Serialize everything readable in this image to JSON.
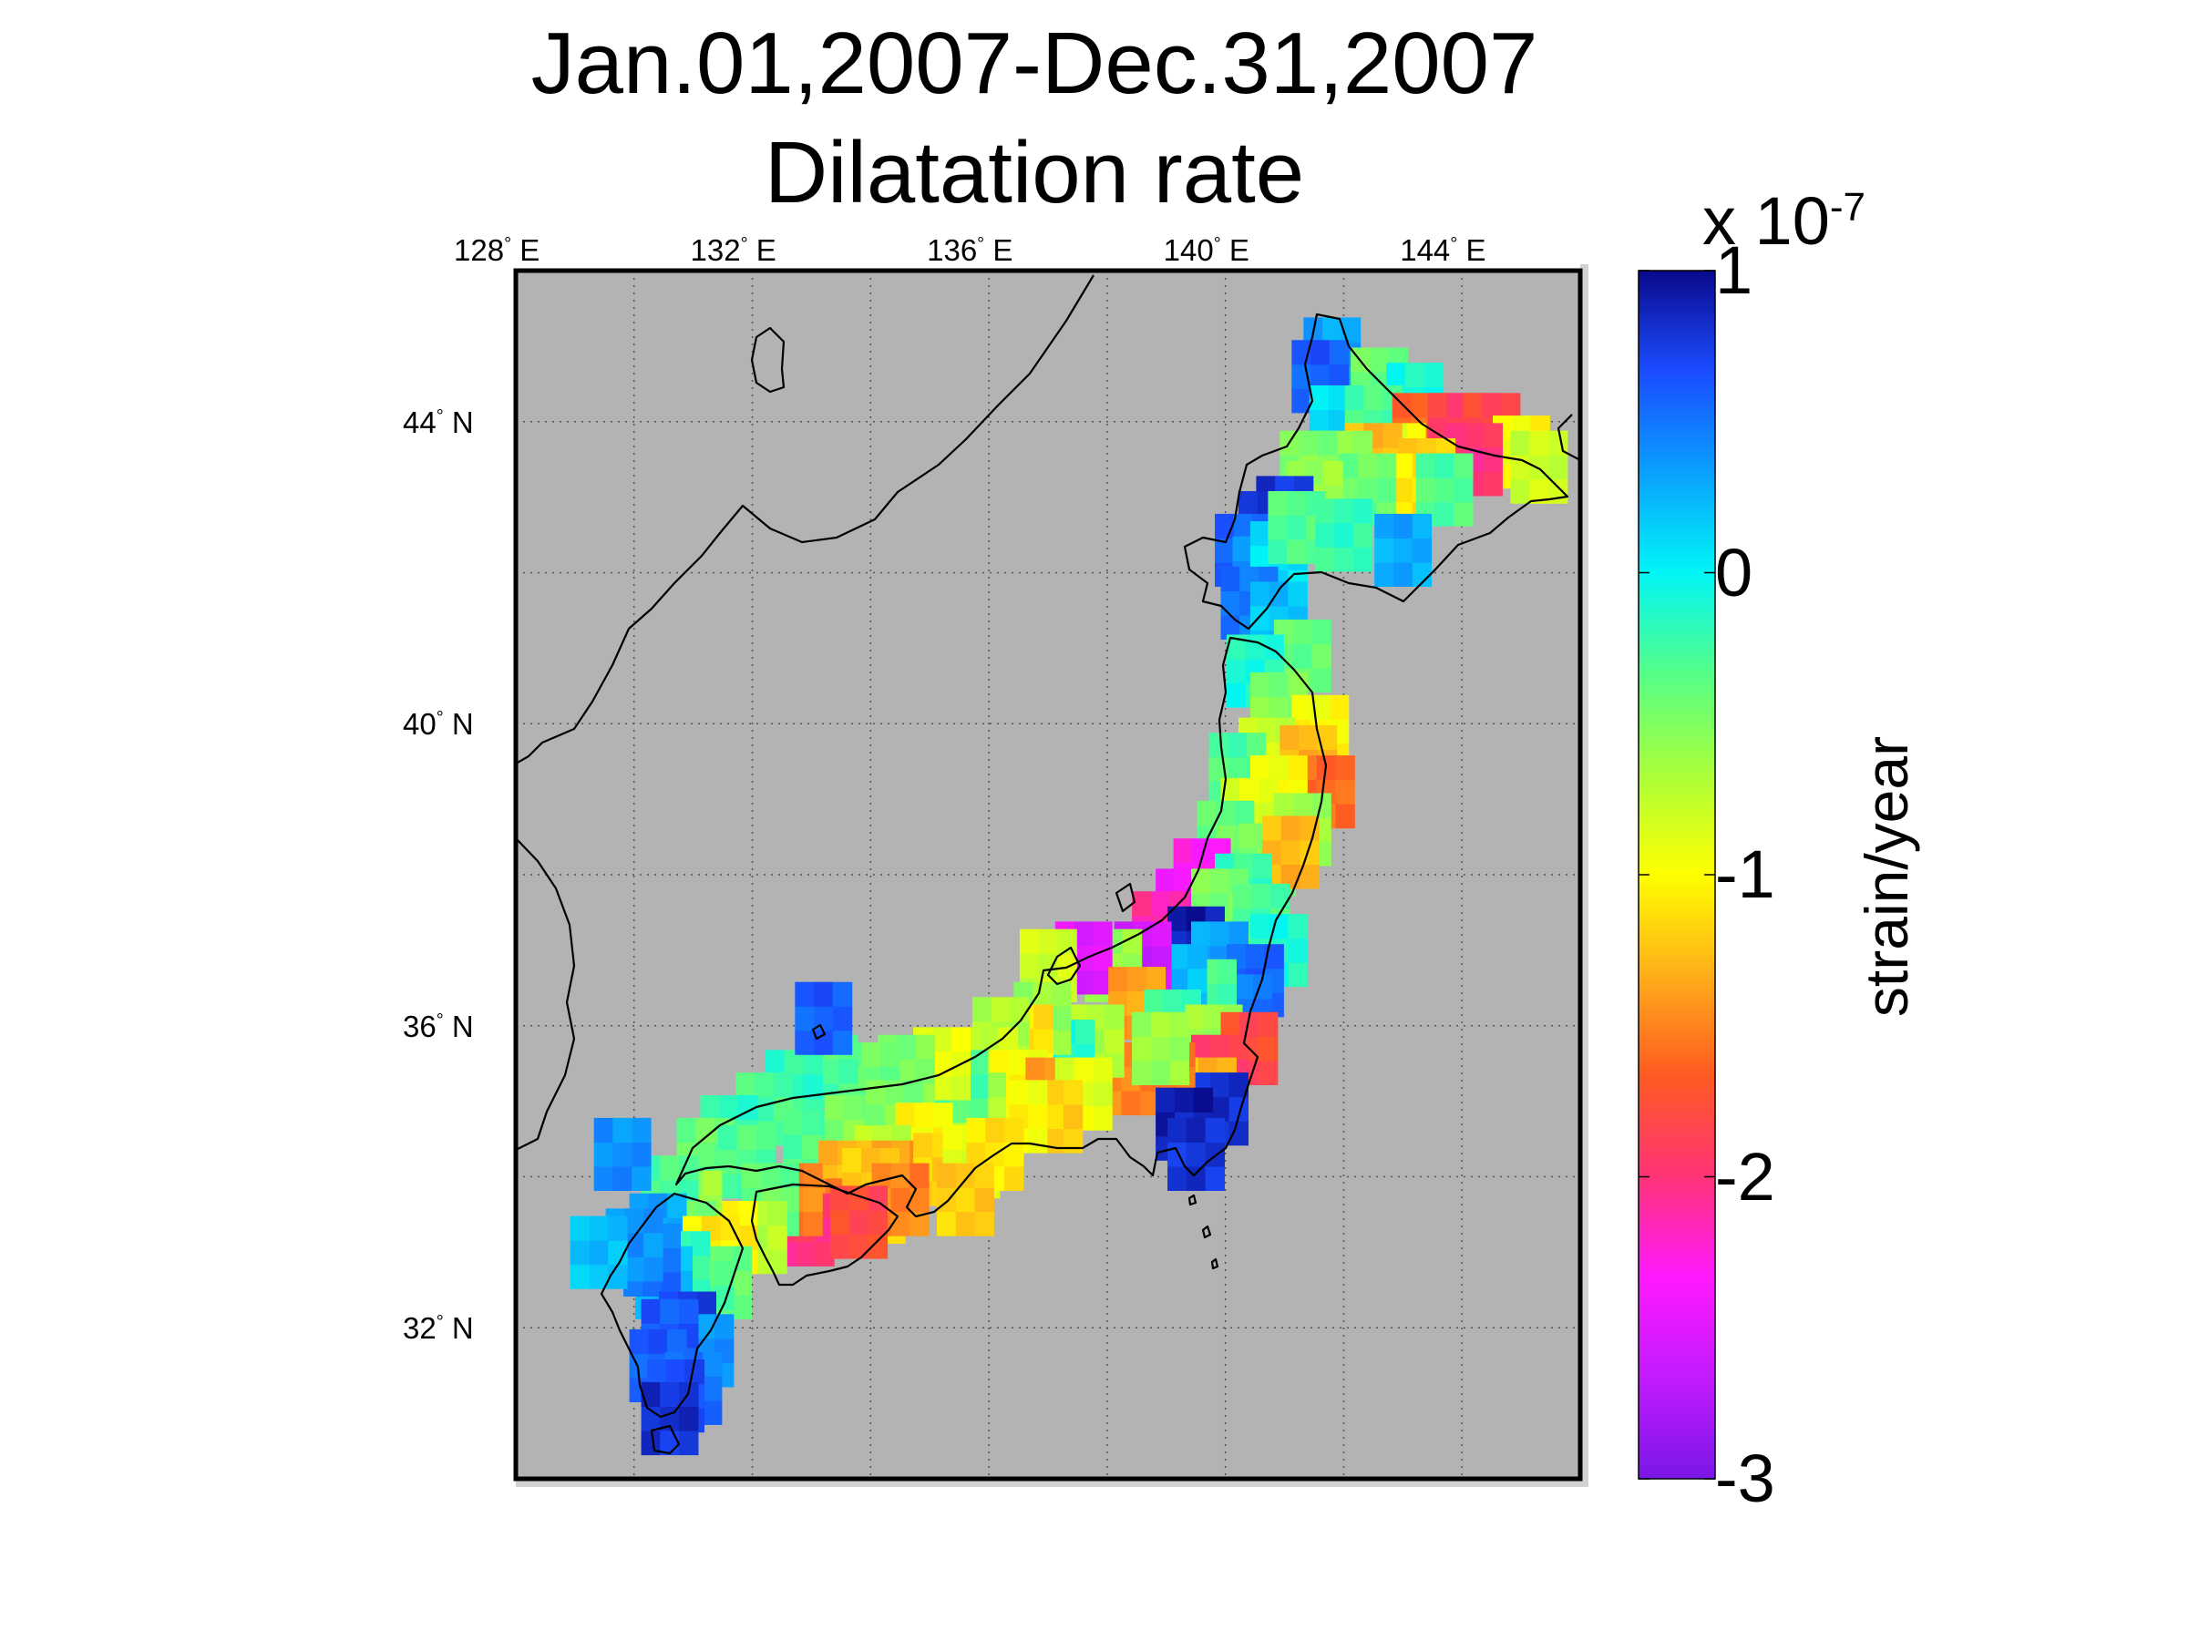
{
  "title": {
    "line1": "Jan.01,2007-Dec.31,2007",
    "line2": "Dilatation rate"
  },
  "map": {
    "extent": {
      "lon_min": 128,
      "lon_max": 146,
      "lat_min": 30,
      "lat_max": 46
    },
    "background_color": "#b3b3b3",
    "lon_ticks": [
      {
        "value": 128,
        "text": "128",
        "deg": "°",
        "hemi": "E"
      },
      {
        "value": 132,
        "text": "132",
        "deg": "°",
        "hemi": "E"
      },
      {
        "value": 136,
        "text": "136",
        "deg": "°",
        "hemi": "E"
      },
      {
        "value": 140,
        "text": "140",
        "deg": "°",
        "hemi": "E"
      },
      {
        "value": 144,
        "text": "144",
        "deg": "°",
        "hemi": "E"
      }
    ],
    "lat_ticks": [
      {
        "value": 44,
        "text": "44",
        "deg": "°",
        "hemi": "N"
      },
      {
        "value": 40,
        "text": "40",
        "deg": "°",
        "hemi": "N"
      },
      {
        "value": 36,
        "text": "36",
        "deg": "°",
        "hemi": "N"
      },
      {
        "value": 32,
        "text": "32",
        "deg": "°",
        "hemi": "N"
      }
    ],
    "gridlines": "dotted"
  },
  "colorbar": {
    "min": -3,
    "max": 1,
    "exponent_prefix": "x 10",
    "exponent": "-7",
    "label": "strain/year",
    "ticks": [
      {
        "value": 1,
        "text": "1"
      },
      {
        "value": 0,
        "text": "0"
      },
      {
        "value": -1,
        "text": "-1"
      },
      {
        "value": -2,
        "text": "-2"
      },
      {
        "value": -3,
        "text": "-3"
      }
    ],
    "colors": [
      "#7a17e6",
      "#c21aff",
      "#ff1aff",
      "#ff3377",
      "#ff5a22",
      "#ffae1a",
      "#ffff00",
      "#aaff3a",
      "#55ff88",
      "#00f5f5",
      "#0aa0ff",
      "#1a4cff",
      "#0a0a8c"
    ]
  },
  "chart_data": {
    "type": "heatmap",
    "title": "Jan.01,2007-Dec.31,2007 Dilatation rate",
    "value_label": "strain/year",
    "value_scale": "x 10^-7",
    "value_range": [
      -3,
      1
    ],
    "xlabel": "",
    "ylabel": "",
    "x_range_lon": [
      128,
      146
    ],
    "y_range_lat": [
      30,
      46
    ],
    "points": [
      [
        141.8,
        44.9,
        0.3
      ],
      [
        141.6,
        44.6,
        0.6
      ],
      [
        142.6,
        44.5,
        -0.4
      ],
      [
        143.2,
        44.3,
        -0.1
      ],
      [
        141.9,
        44.0,
        0.1
      ],
      [
        142.5,
        44.0,
        -0.3
      ],
      [
        143.3,
        43.9,
        -1.6
      ],
      [
        143.9,
        43.9,
        -1.9
      ],
      [
        144.5,
        43.9,
        -1.8
      ],
      [
        145.0,
        43.6,
        -1.0
      ],
      [
        144.2,
        43.5,
        -2.0
      ],
      [
        145.3,
        43.4,
        -0.8
      ],
      [
        142.9,
        43.5,
        -0.9
      ],
      [
        142.5,
        43.5,
        -1.3
      ],
      [
        143.4,
        43.3,
        -1.2
      ],
      [
        142.0,
        43.4,
        -0.6
      ],
      [
        143.0,
        43.1,
        -1.1
      ],
      [
        142.4,
        43.1,
        -0.4
      ],
      [
        143.7,
        43.1,
        -0.3
      ],
      [
        141.4,
        43.4,
        -0.5
      ],
      [
        141.5,
        43.0,
        -0.6
      ],
      [
        141.0,
        42.8,
        0.8
      ],
      [
        140.7,
        42.6,
        0.8
      ],
      [
        140.3,
        42.3,
        0.6
      ],
      [
        140.6,
        42.0,
        0.4
      ],
      [
        140.9,
        42.2,
        0.1
      ],
      [
        141.2,
        42.6,
        -0.3
      ],
      [
        142.0,
        42.5,
        -0.2
      ],
      [
        143.0,
        42.3,
        0.3
      ],
      [
        140.4,
        41.6,
        0.5
      ],
      [
        140.9,
        41.4,
        0.2
      ],
      [
        141.3,
        40.9,
        -0.4
      ],
      [
        140.5,
        40.7,
        -0.1
      ],
      [
        140.9,
        40.2,
        -0.5
      ],
      [
        141.6,
        39.9,
        -1.0
      ],
      [
        140.7,
        39.6,
        -0.8
      ],
      [
        141.4,
        39.5,
        -1.3
      ],
      [
        140.2,
        39.4,
        -0.3
      ],
      [
        141.7,
        39.1,
        -1.6
      ],
      [
        140.9,
        39.1,
        -1.0
      ],
      [
        140.4,
        38.8,
        -0.9
      ],
      [
        141.3,
        38.6,
        -0.6
      ],
      [
        140.0,
        38.5,
        -0.4
      ],
      [
        140.7,
        38.2,
        -0.5
      ],
      [
        141.1,
        38.3,
        -1.3
      ],
      [
        139.6,
        38.0,
        -2.3
      ],
      [
        140.3,
        37.8,
        -0.2
      ],
      [
        139.3,
        37.6,
        -2.4
      ],
      [
        139.9,
        37.6,
        -0.5
      ],
      [
        140.6,
        37.4,
        -0.3
      ],
      [
        140.9,
        37.0,
        -0.1
      ],
      [
        138.9,
        37.3,
        -2.1
      ],
      [
        139.5,
        37.1,
        0.9
      ],
      [
        139.9,
        36.9,
        0.3
      ],
      [
        140.5,
        36.6,
        0.6
      ],
      [
        140.3,
        36.2,
        0.5
      ],
      [
        139.7,
        36.4,
        -0.3
      ],
      [
        139.2,
        36.6,
        0.2
      ],
      [
        138.6,
        36.9,
        -2.6
      ],
      [
        138.1,
        36.8,
        -0.6
      ],
      [
        137.6,
        36.9,
        -2.5
      ],
      [
        137.0,
        36.8,
        -0.8
      ],
      [
        138.5,
        36.3,
        -1.4
      ],
      [
        139.1,
        36.0,
        -0.2
      ],
      [
        139.8,
        35.8,
        -0.6
      ],
      [
        140.4,
        35.7,
        -1.8
      ],
      [
        139.9,
        35.4,
        -1.9
      ],
      [
        139.7,
        35.1,
        -1.3
      ],
      [
        139.9,
        34.9,
        0.8
      ],
      [
        139.0,
        35.3,
        -1.6
      ],
      [
        138.4,
        35.3,
        -1.5
      ],
      [
        138.9,
        35.7,
        -0.6
      ],
      [
        137.8,
        35.8,
        -0.7
      ],
      [
        137.3,
        35.6,
        -0.1
      ],
      [
        136.9,
        36.1,
        -0.6
      ],
      [
        136.6,
        35.8,
        -1.1
      ],
      [
        136.2,
        35.9,
        -0.7
      ],
      [
        136.0,
        35.5,
        -0.8
      ],
      [
        136.5,
        35.2,
        -1.0
      ],
      [
        137.1,
        35.1,
        -1.4
      ],
      [
        137.6,
        35.1,
        -0.9
      ],
      [
        137.1,
        34.8,
        -1.2
      ],
      [
        136.5,
        34.8,
        -1.0
      ],
      [
        135.8,
        34.9,
        -0.7
      ],
      [
        135.5,
        35.2,
        -0.3
      ],
      [
        135.2,
        35.5,
        -0.9
      ],
      [
        134.6,
        35.4,
        -0.5
      ],
      [
        134.0,
        35.3,
        -0.4
      ],
      [
        133.3,
        35.4,
        -0.3
      ],
      [
        132.7,
        35.2,
        -0.2
      ],
      [
        132.2,
        34.9,
        -0.3
      ],
      [
        131.6,
        34.6,
        -0.2
      ],
      [
        131.2,
        34.3,
        -0.4
      ],
      [
        131.9,
        34.2,
        -0.3
      ],
      [
        133.0,
        34.4,
        -0.3
      ],
      [
        133.7,
        34.6,
        -0.5
      ],
      [
        134.4,
        34.8,
        -0.5
      ],
      [
        134.9,
        34.5,
        -1.0
      ],
      [
        134.2,
        34.2,
        -0.7
      ],
      [
        133.6,
        34.0,
        -1.3
      ],
      [
        134.5,
        34.0,
        -1.4
      ],
      [
        135.2,
        34.1,
        -1.2
      ],
      [
        135.7,
        34.2,
        -0.9
      ],
      [
        136.1,
        34.3,
        -1.1
      ],
      [
        135.6,
        33.7,
        -1.2
      ],
      [
        134.1,
        33.6,
        -1.1
      ],
      [
        133.4,
        33.5,
        -1.5
      ],
      [
        132.9,
        33.3,
        -2.0
      ],
      [
        132.7,
        33.7,
        -1.5
      ],
      [
        134.0,
        33.9,
        -1.2
      ],
      [
        134.5,
        33.7,
        -1.5
      ],
      [
        133.8,
        33.4,
        -1.8
      ],
      [
        132.3,
        33.7,
        -0.4
      ],
      [
        132.1,
        33.2,
        -0.7
      ],
      [
        131.6,
        33.2,
        -1.1
      ],
      [
        131.0,
        33.6,
        -0.6
      ],
      [
        130.6,
        33.8,
        -0.3
      ],
      [
        130.9,
        33.2,
        -0.5
      ],
      [
        130.4,
        33.3,
        0.3
      ],
      [
        131.3,
        33.0,
        -1.1
      ],
      [
        131.5,
        32.6,
        -0.4
      ],
      [
        131.2,
        32.4,
        -0.3
      ],
      [
        130.8,
        32.8,
        -0.2
      ],
      [
        130.5,
        32.6,
        0.2
      ],
      [
        130.3,
        32.9,
        0.5
      ],
      [
        130.0,
        33.1,
        0.4
      ],
      [
        130.9,
        32.0,
        0.7
      ],
      [
        131.2,
        31.7,
        0.4
      ],
      [
        130.6,
        31.9,
        0.6
      ],
      [
        130.4,
        31.5,
        0.6
      ],
      [
        131.0,
        31.2,
        0.5
      ],
      [
        130.7,
        31.1,
        0.7
      ],
      [
        130.6,
        30.8,
        0.8
      ],
      [
        129.4,
        33.0,
        0.2
      ],
      [
        129.8,
        34.3,
        0.4
      ],
      [
        133.2,
        36.1,
        0.6
      ],
      [
        139.3,
        34.7,
        0.9
      ],
      [
        139.5,
        34.3,
        0.8
      ]
    ]
  }
}
